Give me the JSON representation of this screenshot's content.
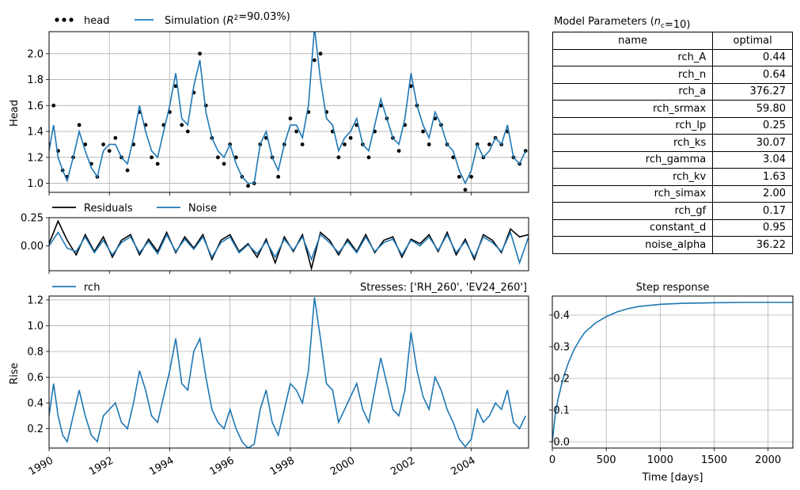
{
  "chart_data": [
    {
      "id": "head",
      "type": "line",
      "ylabel": "Head",
      "ylim": [
        0.93,
        2.17
      ],
      "yticks": [
        "1.0",
        "1.2",
        "1.4",
        "1.6",
        "1.8",
        "2.0"
      ],
      "legend": {
        "placement": "top-left, outside"
      },
      "series": [
        {
          "name": "head",
          "style": "scatter",
          "color": "#000000",
          "x": [
            1990.0,
            1990.15,
            1990.3,
            1990.45,
            1990.6,
            1990.8,
            1991.0,
            1991.2,
            1991.4,
            1991.6,
            1991.8,
            1992.0,
            1992.2,
            1992.4,
            1992.6,
            1992.8,
            1993.0,
            1993.2,
            1993.4,
            1993.6,
            1993.8,
            1994.0,
            1994.2,
            1994.4,
            1994.6,
            1994.8,
            1995.0,
            1995.2,
            1995.4,
            1995.6,
            1995.8,
            1996.0,
            1996.2,
            1996.4,
            1996.6,
            1996.8,
            1997.0,
            1997.2,
            1997.4,
            1997.6,
            1997.8,
            1998.0,
            1998.2,
            1998.4,
            1998.6,
            1998.8,
            1999.0,
            1999.2,
            1999.4,
            1999.6,
            1999.8,
            2000.0,
            2000.2,
            2000.4,
            2000.6,
            2000.8,
            2001.0,
            2001.2,
            2001.4,
            2001.6,
            2001.8,
            2002.0,
            2002.2,
            2002.4,
            2002.6,
            2002.8,
            2003.0,
            2003.2,
            2003.4,
            2003.6,
            2003.8,
            2004.0,
            2004.2,
            2004.4,
            2004.6,
            2004.8,
            2005.0,
            2005.2,
            2005.4,
            2005.6,
            2005.8
          ],
          "y": [
            1.3,
            1.6,
            1.25,
            1.1,
            1.05,
            1.2,
            1.45,
            1.3,
            1.15,
            1.05,
            1.3,
            1.25,
            1.35,
            1.2,
            1.1,
            1.3,
            1.55,
            1.45,
            1.2,
            1.15,
            1.45,
            1.55,
            1.75,
            1.45,
            1.4,
            1.7,
            2.0,
            1.6,
            1.35,
            1.2,
            1.15,
            1.3,
            1.2,
            1.05,
            0.98,
            1.0,
            1.3,
            1.35,
            1.2,
            1.05,
            1.3,
            1.5,
            1.4,
            1.3,
            1.55,
            1.95,
            2.0,
            1.55,
            1.4,
            1.2,
            1.3,
            1.35,
            1.45,
            1.3,
            1.2,
            1.4,
            1.6,
            1.5,
            1.35,
            1.25,
            1.45,
            1.75,
            1.6,
            1.4,
            1.3,
            1.5,
            1.45,
            1.3,
            1.2,
            1.05,
            0.95,
            1.05,
            1.3,
            1.2,
            1.3,
            1.35,
            1.3,
            1.4,
            1.2,
            1.15,
            1.25
          ]
        },
        {
          "name": "Simulation ($R^2$=90.03%)",
          "style": "line",
          "color": "#1f77b4",
          "x": [
            1990.0,
            1990.15,
            1990.3,
            1990.45,
            1990.6,
            1990.8,
            1991.0,
            1991.2,
            1991.4,
            1991.6,
            1991.8,
            1992.0,
            1992.2,
            1992.4,
            1992.6,
            1992.8,
            1993.0,
            1993.2,
            1993.4,
            1993.6,
            1993.8,
            1994.0,
            1994.2,
            1994.4,
            1994.6,
            1994.8,
            1995.0,
            1995.2,
            1995.4,
            1995.6,
            1995.8,
            1996.0,
            1996.2,
            1996.4,
            1996.6,
            1996.8,
            1997.0,
            1997.2,
            1997.4,
            1997.6,
            1997.8,
            1998.0,
            1998.2,
            1998.4,
            1998.6,
            1998.8,
            1999.0,
            1999.2,
            1999.4,
            1999.6,
            1999.8,
            2000.0,
            2000.2,
            2000.4,
            2000.6,
            2000.8,
            2001.0,
            2001.2,
            2001.4,
            2001.6,
            2001.8,
            2002.0,
            2002.2,
            2002.4,
            2002.6,
            2002.8,
            2003.0,
            2003.2,
            2003.4,
            2003.6,
            2003.8,
            2004.0,
            2004.2,
            2004.4,
            2004.6,
            2004.8,
            2005.0,
            2005.2,
            2005.4,
            2005.6,
            2005.8
          ],
          "y": [
            1.25,
            1.45,
            1.2,
            1.1,
            1.02,
            1.2,
            1.4,
            1.25,
            1.12,
            1.05,
            1.25,
            1.3,
            1.3,
            1.2,
            1.15,
            1.35,
            1.6,
            1.4,
            1.25,
            1.2,
            1.4,
            1.6,
            1.85,
            1.5,
            1.45,
            1.75,
            1.95,
            1.55,
            1.35,
            1.25,
            1.2,
            1.3,
            1.15,
            1.05,
            1.0,
            1.0,
            1.3,
            1.4,
            1.2,
            1.1,
            1.3,
            1.45,
            1.45,
            1.35,
            1.6,
            2.2,
            1.8,
            1.5,
            1.45,
            1.25,
            1.35,
            1.4,
            1.5,
            1.3,
            1.25,
            1.45,
            1.65,
            1.5,
            1.35,
            1.3,
            1.5,
            1.85,
            1.6,
            1.45,
            1.35,
            1.55,
            1.45,
            1.3,
            1.25,
            1.1,
            1.0,
            1.1,
            1.3,
            1.2,
            1.25,
            1.35,
            1.3,
            1.45,
            1.2,
            1.15,
            1.25
          ]
        }
      ]
    },
    {
      "id": "residuals",
      "type": "line",
      "ylim": [
        -0.22,
        0.25
      ],
      "yticks": [
        "0.00",
        "0.25"
      ],
      "legend": {
        "placement": "top-left, outside"
      },
      "series": [
        {
          "name": "Residuals",
          "color": "#000000",
          "x": [
            1990.0,
            1990.3,
            1990.6,
            1990.9,
            1991.2,
            1991.5,
            1991.8,
            1992.1,
            1992.4,
            1992.7,
            1993.0,
            1993.3,
            1993.6,
            1993.9,
            1994.2,
            1994.5,
            1994.8,
            1995.1,
            1995.4,
            1995.7,
            1996.0,
            1996.3,
            1996.6,
            1996.9,
            1997.2,
            1997.5,
            1997.8,
            1998.1,
            1998.4,
            1998.7,
            1999.0,
            1999.3,
            1999.6,
            1999.9,
            2000.2,
            2000.5,
            2000.8,
            2001.1,
            2001.4,
            2001.7,
            2002.0,
            2002.3,
            2002.6,
            2002.9,
            2003.2,
            2003.5,
            2003.8,
            2004.1,
            2004.4,
            2004.7,
            2005.0,
            2005.3,
            2005.6,
            2005.9
          ],
          "y": [
            0.02,
            0.22,
            0.05,
            -0.08,
            0.1,
            -0.05,
            0.08,
            -0.1,
            0.05,
            0.1,
            -0.08,
            0.06,
            -0.05,
            0.12,
            -0.06,
            0.08,
            -0.02,
            0.1,
            -0.12,
            0.05,
            0.1,
            -0.05,
            0.02,
            -0.1,
            0.06,
            -0.15,
            0.08,
            -0.05,
            0.1,
            -0.2,
            0.12,
            0.05,
            -0.08,
            0.06,
            -0.05,
            0.1,
            -0.06,
            0.05,
            0.08,
            -0.1,
            0.06,
            0.02,
            0.1,
            -0.05,
            0.12,
            -0.08,
            0.06,
            -0.12,
            0.1,
            0.05,
            -0.06,
            0.15,
            0.08,
            0.1
          ]
        },
        {
          "name": "Noise",
          "color": "#1f77b4",
          "x": [
            1990.0,
            1990.3,
            1990.6,
            1990.9,
            1991.2,
            1991.5,
            1991.8,
            1992.1,
            1992.4,
            1992.7,
            1993.0,
            1993.3,
            1993.6,
            1993.9,
            1994.2,
            1994.5,
            1994.8,
            1995.1,
            1995.4,
            1995.7,
            1996.0,
            1996.3,
            1996.6,
            1996.9,
            1997.2,
            1997.5,
            1997.8,
            1998.1,
            1998.4,
            1998.7,
            1999.0,
            1999.3,
            1999.6,
            1999.9,
            2000.2,
            2000.5,
            2000.8,
            2001.1,
            2001.4,
            2001.7,
            2002.0,
            2002.3,
            2002.6,
            2002.9,
            2003.2,
            2003.5,
            2003.8,
            2004.1,
            2004.4,
            2004.7,
            2005.0,
            2005.3,
            2005.6,
            2005.9
          ],
          "y": [
            0.0,
            0.12,
            -0.02,
            -0.05,
            0.08,
            -0.06,
            0.05,
            -0.08,
            0.03,
            0.08,
            -0.06,
            0.04,
            -0.07,
            0.1,
            -0.05,
            0.06,
            -0.03,
            0.08,
            -0.1,
            0.03,
            0.08,
            -0.06,
            0.01,
            -0.07,
            0.04,
            -0.1,
            0.06,
            -0.04,
            0.08,
            -0.12,
            0.1,
            0.03,
            -0.06,
            0.04,
            -0.06,
            0.08,
            -0.05,
            0.03,
            0.06,
            -0.08,
            0.05,
            0.0,
            0.08,
            -0.04,
            0.1,
            -0.06,
            0.04,
            -0.1,
            0.08,
            0.03,
            -0.05,
            0.12,
            -0.15,
            0.08
          ]
        }
      ]
    },
    {
      "id": "rise",
      "type": "line",
      "ylabel": "Rise",
      "ylim": [
        0.05,
        1.23
      ],
      "yticks": [
        "0.2",
        "0.4",
        "0.6",
        "0.8",
        "1.0",
        "1.2"
      ],
      "xticks": [
        "1990",
        "1992",
        "1994",
        "1996",
        "1998",
        "2000",
        "2002",
        "2004"
      ],
      "xlim": [
        1990,
        2005.9
      ],
      "legend": {
        "placement": "top-left, outside"
      },
      "series": [
        {
          "name": "rch",
          "color": "#1f77b4",
          "x": [
            1990.0,
            1990.15,
            1990.3,
            1990.45,
            1990.6,
            1990.8,
            1991.0,
            1991.2,
            1991.4,
            1991.6,
            1991.8,
            1992.0,
            1992.2,
            1992.4,
            1992.6,
            1992.8,
            1993.0,
            1993.2,
            1993.4,
            1993.6,
            1993.8,
            1994.0,
            1994.2,
            1994.4,
            1994.6,
            1994.8,
            1995.0,
            1995.2,
            1995.4,
            1995.6,
            1995.8,
            1996.0,
            1996.2,
            1996.4,
            1996.6,
            1996.8,
            1997.0,
            1997.2,
            1997.4,
            1997.6,
            1997.8,
            1998.0,
            1998.2,
            1998.4,
            1998.6,
            1998.8,
            1999.0,
            1999.2,
            1999.4,
            1999.6,
            1999.8,
            2000.0,
            2000.2,
            2000.4,
            2000.6,
            2000.8,
            2001.0,
            2001.2,
            2001.4,
            2001.6,
            2001.8,
            2002.0,
            2002.2,
            2002.4,
            2002.6,
            2002.8,
            2003.0,
            2003.2,
            2003.4,
            2003.6,
            2003.8,
            2004.0,
            2004.2,
            2004.4,
            2004.6,
            2004.8,
            2005.0,
            2005.2,
            2005.4,
            2005.6,
            2005.8
          ],
          "y": [
            0.3,
            0.55,
            0.3,
            0.15,
            0.1,
            0.3,
            0.5,
            0.3,
            0.15,
            0.1,
            0.3,
            0.35,
            0.4,
            0.25,
            0.2,
            0.4,
            0.65,
            0.5,
            0.3,
            0.25,
            0.45,
            0.65,
            0.9,
            0.55,
            0.5,
            0.8,
            0.9,
            0.6,
            0.35,
            0.25,
            0.2,
            0.35,
            0.2,
            0.1,
            0.05,
            0.08,
            0.35,
            0.5,
            0.25,
            0.15,
            0.35,
            0.55,
            0.5,
            0.4,
            0.65,
            1.22,
            0.9,
            0.55,
            0.5,
            0.25,
            0.35,
            0.45,
            0.55,
            0.35,
            0.25,
            0.5,
            0.75,
            0.55,
            0.35,
            0.3,
            0.5,
            0.95,
            0.65,
            0.45,
            0.35,
            0.6,
            0.5,
            0.35,
            0.25,
            0.12,
            0.06,
            0.12,
            0.35,
            0.25,
            0.3,
            0.4,
            0.35,
            0.5,
            0.25,
            0.2,
            0.3
          ]
        }
      ],
      "annotation": "Stresses: ['RH_260', 'EV24_260']"
    },
    {
      "id": "step-response",
      "type": "line",
      "title": "Step response",
      "xlabel": "Time [days]",
      "xlim": [
        0,
        2230
      ],
      "ylim": [
        -0.02,
        0.46
      ],
      "xticks": [
        "0",
        "500",
        "1000",
        "1500",
        "2000"
      ],
      "yticks": [
        "0.0",
        "0.1",
        "0.2",
        "0.3",
        "0.4"
      ],
      "series": [
        {
          "name": "",
          "color": "#1f77b4",
          "x": [
            0,
            25,
            50,
            100,
            150,
            200,
            250,
            300,
            400,
            500,
            600,
            700,
            800,
            1000,
            1200,
            1500,
            1800,
            2000,
            2230
          ],
          "y": [
            0,
            0.08,
            0.13,
            0.2,
            0.25,
            0.29,
            0.32,
            0.345,
            0.375,
            0.395,
            0.41,
            0.42,
            0.427,
            0.434,
            0.437,
            0.439,
            0.44,
            0.44,
            0.44
          ]
        }
      ]
    }
  ],
  "params_table": {
    "title": "Model Parameters ($n_c$=10)",
    "columns": [
      "name",
      "optimal"
    ],
    "rows": [
      [
        "rch_A",
        "0.44"
      ],
      [
        "rch_n",
        "0.64"
      ],
      [
        "rch_a",
        "376.27"
      ],
      [
        "rch_srmax",
        "59.80"
      ],
      [
        "rch_lp",
        "0.25"
      ],
      [
        "rch_ks",
        "30.07"
      ],
      [
        "rch_gamma",
        "3.04"
      ],
      [
        "rch_kv",
        "1.63"
      ],
      [
        "rch_simax",
        "2.00"
      ],
      [
        "rch_gf",
        "0.17"
      ],
      [
        "constant_d",
        "0.95"
      ],
      [
        "noise_alpha",
        "36.22"
      ]
    ]
  }
}
